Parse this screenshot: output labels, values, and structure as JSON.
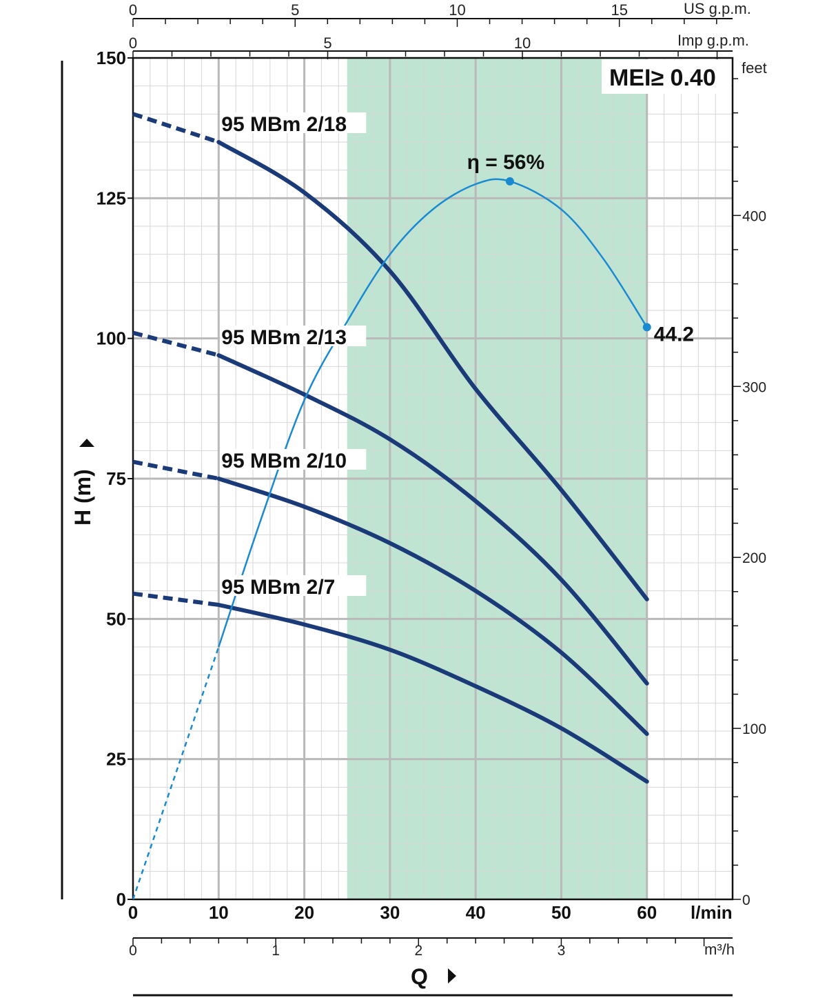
{
  "chart_data": {
    "type": "line",
    "x_unit": "l/min",
    "y_unit_left": "H (m)",
    "y_unit_right": "feet",
    "x_label": "Q",
    "top_unit_1": "US g.p.m.",
    "top_unit_2": "Imp g.p.m.",
    "bottom_unit_2": "m³/h",
    "xlim": [
      0,
      70
    ],
    "ylim": [
      0,
      150
    ],
    "x_ticks": [
      "0",
      "10",
      "20",
      "30",
      "40",
      "50",
      "60"
    ],
    "y_ticks": [
      "0",
      "25",
      "50",
      "75",
      "100",
      "125",
      "150"
    ],
    "feet_ticks": [
      "0",
      "100",
      "200",
      "300",
      "400"
    ],
    "m3h_ticks": [
      "0",
      "1",
      "2",
      "3"
    ],
    "us_gpm_ticks": [
      "0",
      "5",
      "10",
      "15"
    ],
    "imp_gpm_ticks": [
      "0",
      "5",
      "10"
    ],
    "shaded_range": [
      25,
      60
    ],
    "mei_label": "MEI≥ 0.40",
    "series": [
      {
        "name": "95 MBm 2/18",
        "dashed": [
          [
            0,
            140
          ],
          [
            10,
            135
          ]
        ],
        "solid": [
          [
            10,
            135
          ],
          [
            20,
            126
          ],
          [
            30,
            112
          ],
          [
            40,
            91
          ],
          [
            50,
            73
          ],
          [
            60,
            53.5
          ]
        ]
      },
      {
        "name": "95 MBm 2/13",
        "dashed": [
          [
            0,
            101
          ],
          [
            10,
            97
          ]
        ],
        "solid": [
          [
            10,
            97
          ],
          [
            20,
            90
          ],
          [
            30,
            82
          ],
          [
            40,
            71
          ],
          [
            50,
            57
          ],
          [
            60,
            38.5
          ]
        ]
      },
      {
        "name": "95 MBm 2/10",
        "dashed": [
          [
            0,
            78
          ],
          [
            10,
            75
          ]
        ],
        "solid": [
          [
            10,
            75
          ],
          [
            20,
            70
          ],
          [
            30,
            63.5
          ],
          [
            40,
            55
          ],
          [
            50,
            44
          ],
          [
            60,
            29.5
          ]
        ]
      },
      {
        "name": "95 MBm 2/7",
        "dashed": [
          [
            0,
            54.5
          ],
          [
            10,
            52.5
          ]
        ],
        "solid": [
          [
            10,
            52.5
          ],
          [
            20,
            49
          ],
          [
            30,
            44.5
          ],
          [
            40,
            38
          ],
          [
            50,
            30.5
          ],
          [
            60,
            21
          ]
        ]
      }
    ],
    "efficiency": {
      "label": "η = 56%",
      "end_label": "44.2",
      "dashed": [
        [
          0,
          0
        ],
        [
          10,
          45
        ]
      ],
      "solid": [
        [
          10,
          45
        ],
        [
          15,
          68
        ],
        [
          20,
          89
        ],
        [
          25,
          103
        ],
        [
          30,
          115
        ],
        [
          35,
          123
        ],
        [
          40,
          127.5
        ],
        [
          44,
          128
        ],
        [
          50,
          123
        ],
        [
          55,
          114
        ],
        [
          60,
          102
        ]
      ],
      "peak": [
        44,
        128
      ],
      "end": [
        60,
        102
      ]
    },
    "colors": {
      "curve": "#1b3a78",
      "efficiency": "#1a8ad0",
      "shade": "#bfe4d2",
      "grid_major": "#b9b9b9",
      "grid_minor": "#d6d6d6"
    }
  }
}
